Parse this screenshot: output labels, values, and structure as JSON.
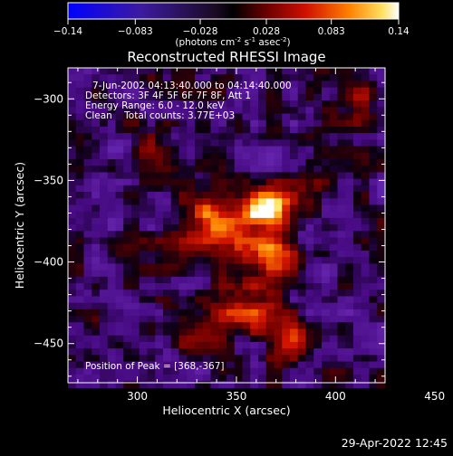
{
  "chart_data": {
    "type": "heatmap",
    "title": "Reconstructed RHESSI Image",
    "xlabel": "Heliocentric X (arcsec)",
    "ylabel": "Heliocentric Y (arcsec)",
    "xlim": [
      265,
      425
    ],
    "ylim": [
      -474,
      -281
    ],
    "x_ticks": [
      300,
      350,
      400,
      450
    ],
    "y_ticks": [
      -300,
      -350,
      -400,
      -450
    ],
    "colorbar": {
      "min": -0.14,
      "max": 0.14,
      "tick_values": [
        -0.14,
        -0.083,
        -0.028,
        0.028,
        0.083,
        0.14
      ],
      "tick_labels": [
        "-0.14",
        "-0.083",
        "-0.028",
        "0.028",
        "0.083",
        "0.14"
      ],
      "unit_text": "(photons cm",
      "unit_sup1": "-2",
      "unit_mid1": " s",
      "unit_sup2": "-1",
      "unit_mid2": " asec",
      "unit_sup3": "-2",
      "unit_end": ")"
    },
    "sources": [
      {
        "x": 368,
        "y": -367,
        "amp": 0.14,
        "sigma": 8
      },
      {
        "x": 367,
        "y": -395,
        "amp": 0.13,
        "sigma": 9
      },
      {
        "x": 340,
        "y": -376,
        "amp": 0.12,
        "sigma": 11
      },
      {
        "x": 358,
        "y": -372,
        "amp": 0.06,
        "sigma": 5
      },
      {
        "x": 352,
        "y": -430,
        "amp": 0.09,
        "sigma": 12
      },
      {
        "x": 378,
        "y": -448,
        "amp": 0.09,
        "sigma": 8
      },
      {
        "x": 330,
        "y": -448,
        "amp": 0.05,
        "sigma": 8
      },
      {
        "x": 410,
        "y": -300,
        "amp": 0.05,
        "sigma": 10
      },
      {
        "x": 300,
        "y": -325,
        "amp": 0.04,
        "sigma": 12
      },
      {
        "x": 395,
        "y": -355,
        "amp": 0.03,
        "sigma": 9
      },
      {
        "x": 308,
        "y": -398,
        "amp": 0.03,
        "sigma": 9
      },
      {
        "x": 290,
        "y": -330,
        "amp": -0.09,
        "sigma": 6
      }
    ],
    "background_level": -0.015
  },
  "annotations": {
    "time_range": "7-Jun-2002 04:13:40.000 to 04:14:40.000",
    "detectors": "Detectors: 3F 4F 5F 6F 7F 8F, Att 1",
    "energy": "Energy Range: 6.0 - 12.0 keV",
    "clean": "Clean    Total counts: 3.77E+03",
    "peak": "Position of Peak = [368,-367]"
  },
  "footer": {
    "timestamp": "29-Apr-2022 12:45"
  }
}
